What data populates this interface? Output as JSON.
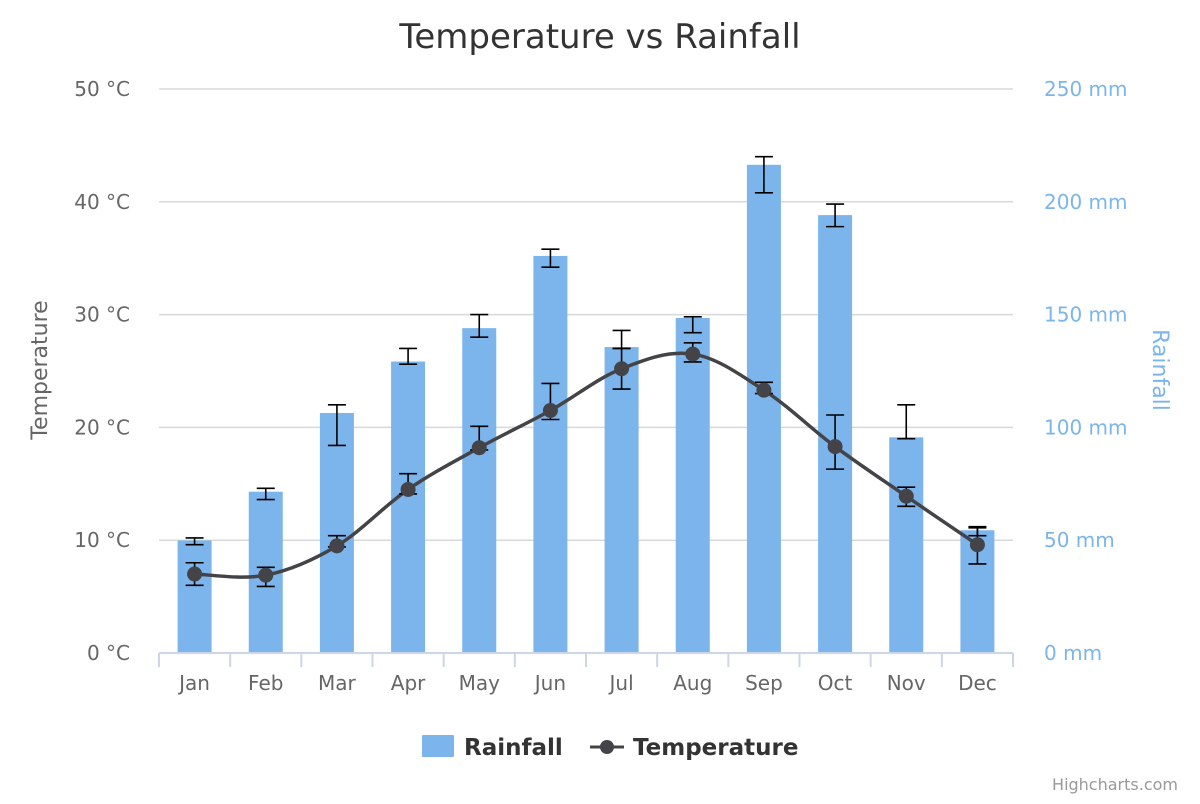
{
  "chart_data": {
    "type": "bar",
    "title": "Temperature vs Rainfall",
    "categories": [
      "Jan",
      "Feb",
      "Mar",
      "Apr",
      "May",
      "Jun",
      "Jul",
      "Aug",
      "Sep",
      "Oct",
      "Nov",
      "Dec"
    ],
    "y_left": {
      "title": "Temperature",
      "range": [
        0,
        50
      ],
      "ticks": [
        0,
        10,
        20,
        30,
        40,
        50
      ],
      "tick_labels": [
        "0 °C",
        "10 °C",
        "20 °C",
        "30 °C",
        "40 °C",
        "50 °C"
      ]
    },
    "y_right": {
      "title": "Rainfall",
      "range": [
        0,
        250
      ],
      "ticks": [
        0,
        50,
        100,
        150,
        200,
        250
      ],
      "tick_labels": [
        "0 mm",
        "50 mm",
        "100 mm",
        "150 mm",
        "200 mm",
        "250 mm"
      ]
    },
    "grid": true,
    "legend_position": "bottom-center",
    "series": [
      {
        "name": "Rainfall",
        "type": "column",
        "axis": "right",
        "color": "#7cb5ec",
        "values": [
          49.9,
          71.5,
          106.4,
          129.2,
          144.0,
          176.0,
          135.6,
          148.5,
          216.4,
          194.1,
          95.6,
          54.4
        ],
        "error_bars": [
          [
            48,
            51
          ],
          [
            68,
            73
          ],
          [
            92,
            110
          ],
          [
            128,
            135
          ],
          [
            140,
            150
          ],
          [
            171,
            179
          ],
          [
            135,
            143
          ],
          [
            142,
            149
          ],
          [
            204,
            220
          ],
          [
            189,
            199
          ],
          [
            95,
            110
          ],
          [
            52,
            56
          ]
        ]
      },
      {
        "name": "Temperature",
        "type": "spline",
        "axis": "left",
        "color": "#434348",
        "values": [
          7.0,
          6.9,
          9.5,
          14.5,
          18.2,
          21.5,
          25.2,
          26.5,
          23.3,
          18.3,
          13.9,
          9.6
        ],
        "error_bars": [
          [
            6,
            8
          ],
          [
            5.9,
            7.6
          ],
          [
            9.4,
            10.4
          ],
          [
            14.1,
            15.9
          ],
          [
            18.0,
            20.1
          ],
          [
            20.7,
            23.9
          ],
          [
            23.4,
            27.0
          ],
          [
            25.8,
            27.5
          ],
          [
            23.0,
            24.0
          ],
          [
            16.3,
            21.1
          ],
          [
            13.0,
            14.7
          ],
          [
            7.9,
            11.1
          ]
        ]
      }
    ],
    "credits": "Highcharts.com"
  }
}
